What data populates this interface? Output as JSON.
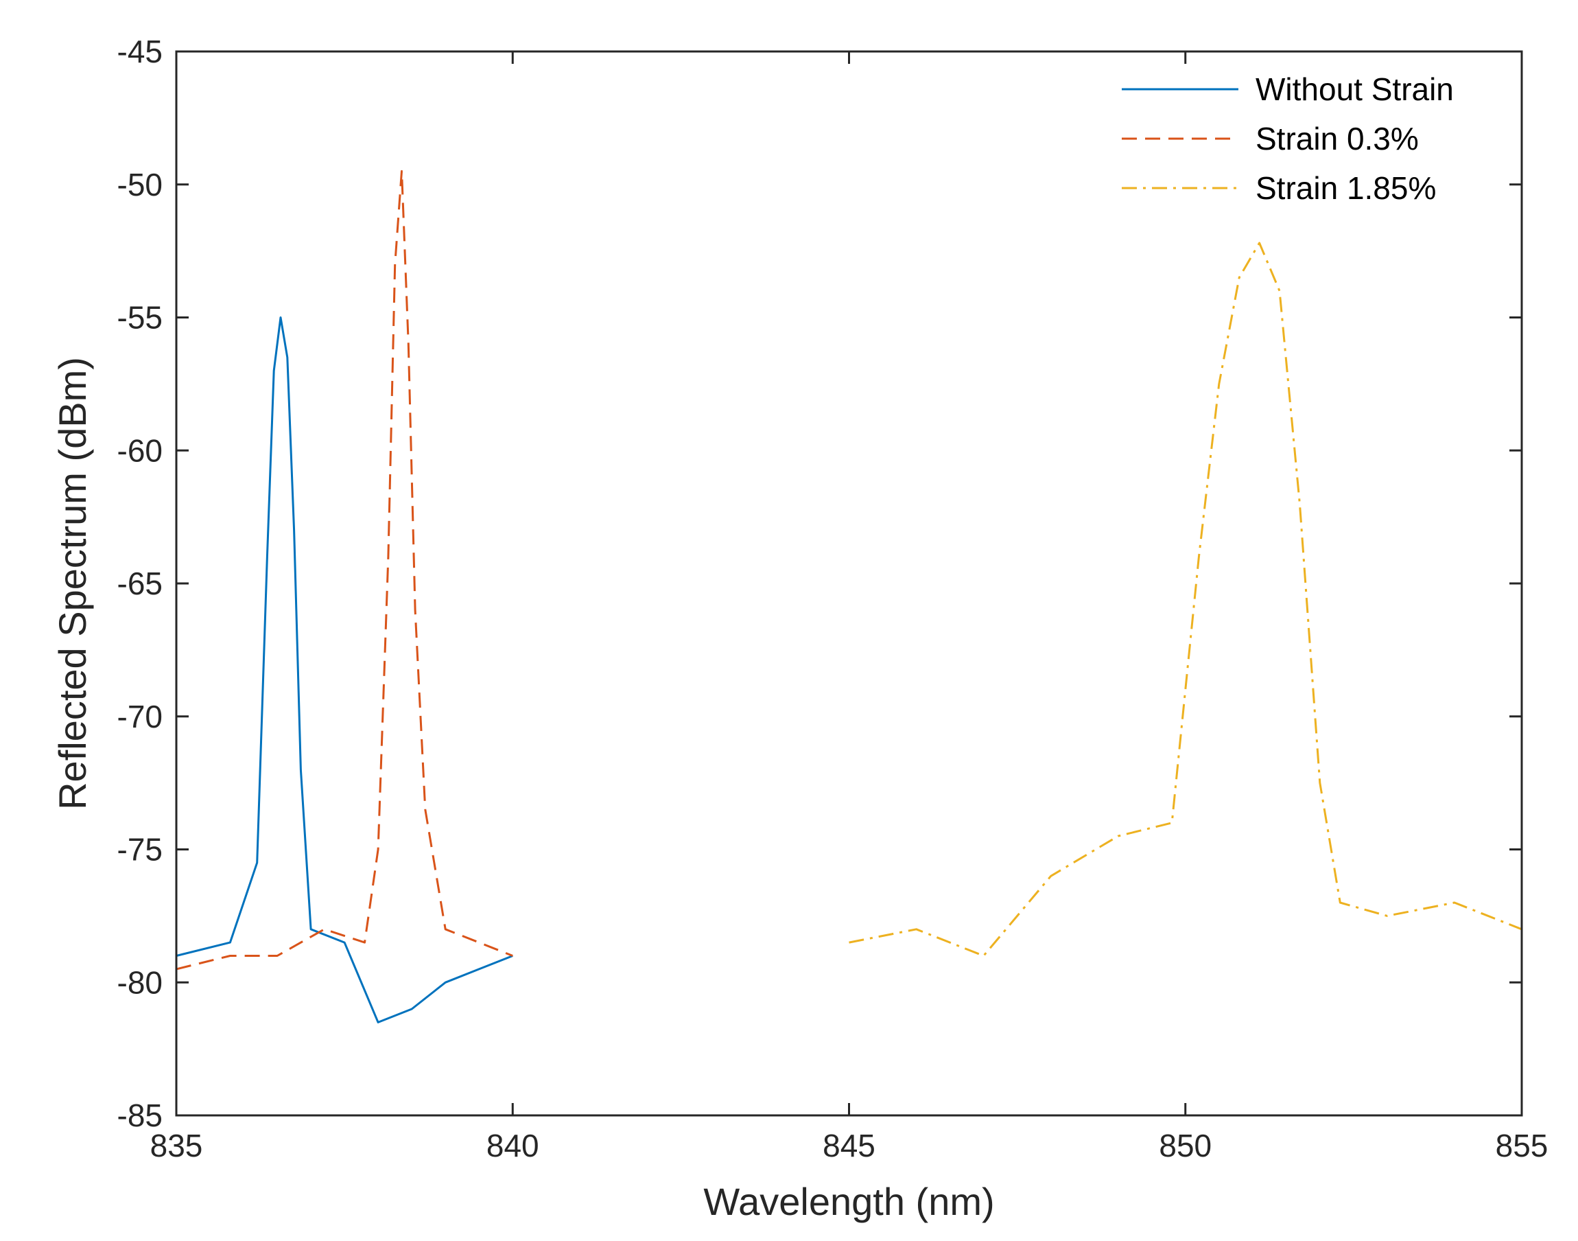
{
  "chart_data": {
    "type": "line",
    "title": "",
    "xlabel": "Wavelength (nm)",
    "ylabel": "Reflected Spectrum (dBm)",
    "xlim": [
      835,
      855
    ],
    "ylim": [
      -85,
      -45
    ],
    "xticks": [
      835,
      840,
      845,
      850,
      855
    ],
    "yticks": [
      -45,
      -50,
      -55,
      -60,
      -65,
      -70,
      -75,
      -80,
      -85
    ],
    "legend_position": "top-right",
    "grid": false,
    "series": [
      {
        "name": "Without Strain",
        "color": "#0072BD",
        "style": "solid",
        "peak": {
          "x": 836.55,
          "y": -55.0
        },
        "x": [
          835.0,
          835.8,
          836.2,
          836.35,
          836.45,
          836.55,
          836.65,
          836.75,
          836.85,
          837.0,
          837.5,
          838.0,
          838.5,
          839.0,
          839.5,
          840.0
        ],
        "y": [
          -79.0,
          -78.5,
          -75.5,
          -64.0,
          -57.0,
          -55.0,
          -56.5,
          -63.0,
          -72.0,
          -78.0,
          -78.5,
          -81.5,
          -81.0,
          -80.0,
          -79.5,
          -79.0
        ]
      },
      {
        "name": "Strain 0.3%",
        "color": "#D95319",
        "style": "dashed",
        "peak": {
          "x": 838.35,
          "y": -49.5
        },
        "x": [
          835.0,
          835.8,
          836.5,
          837.2,
          837.8,
          838.0,
          838.15,
          838.25,
          838.35,
          838.45,
          838.55,
          838.7,
          839.0,
          839.5,
          840.0
        ],
        "y": [
          -79.5,
          -79.0,
          -79.0,
          -78.0,
          -78.5,
          -75.0,
          -64.0,
          -53.0,
          -49.5,
          -56.0,
          -66.0,
          -73.5,
          -78.0,
          -78.5,
          -79.0
        ]
      },
      {
        "name": "Strain 1.85%",
        "color": "#EDB120",
        "style": "dashdot",
        "peak": {
          "x": 851.1,
          "y": -52.2
        },
        "x": [
          845.0,
          846.0,
          847.0,
          848.0,
          849.0,
          849.8,
          850.2,
          850.5,
          850.8,
          851.1,
          851.4,
          851.7,
          852.0,
          852.3,
          853.0,
          854.0,
          855.0
        ],
        "y": [
          -78.5,
          -78.0,
          -79.0,
          -76.0,
          -74.5,
          -74.0,
          -64.0,
          -57.5,
          -53.5,
          -52.2,
          -54.0,
          -62.0,
          -72.5,
          -77.0,
          -77.5,
          -77.0,
          -78.0
        ]
      }
    ]
  }
}
